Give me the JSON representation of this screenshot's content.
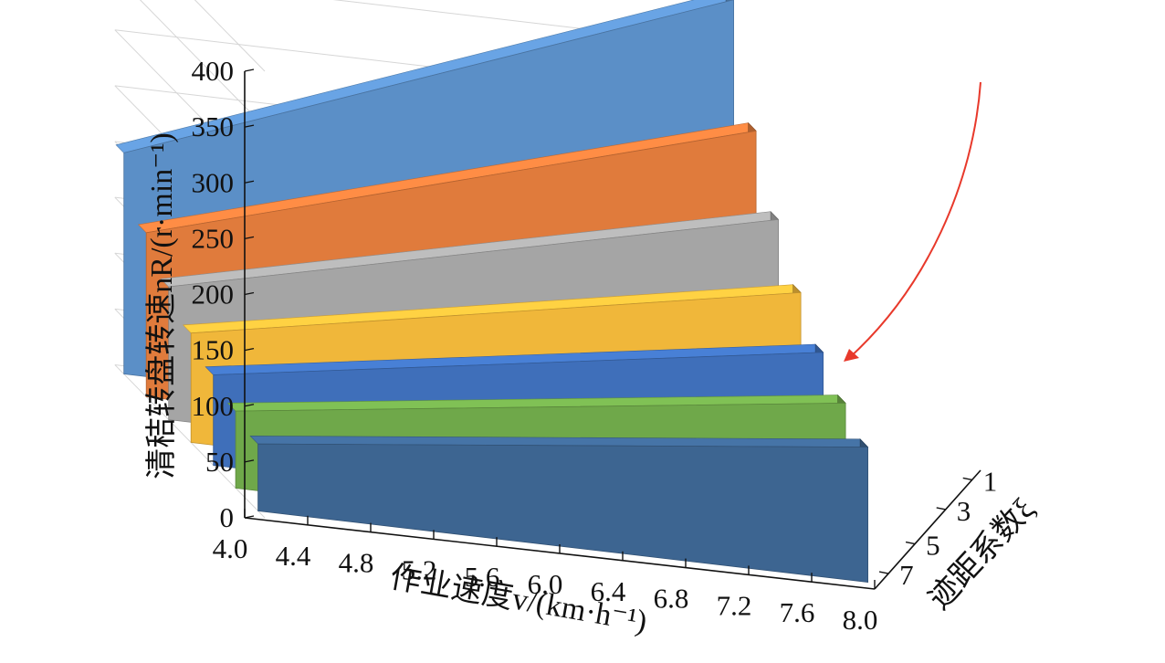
{
  "chart_data": {
    "type": "3d-area",
    "title": "",
    "xlabel": "作业速度v/(km·h⁻¹)",
    "ylabel": "清秸转盘转速nR/(r·min⁻¹)",
    "zlabel": "迹距系数ξ",
    "x_ticks": [
      "4.0",
      "4.4",
      "4.8",
      "5.2",
      "5.6",
      "6.0",
      "6.4",
      "6.8",
      "7.2",
      "7.6",
      "8.0"
    ],
    "y_ticks": [
      "0",
      "50",
      "100",
      "150",
      "200",
      "250",
      "300",
      "350",
      "400"
    ],
    "z_ticks": [
      "1",
      "3",
      "5",
      "7"
    ],
    "xlim": [
      4.0,
      8.0
    ],
    "ylim": [
      0,
      400
    ],
    "grid": true,
    "series": [
      {
        "xi": 1,
        "color": "#5b8fc7",
        "values": [
          198,
          399
        ]
      },
      {
        "xi": 2,
        "color": "#e07b3c",
        "values": [
          147,
          302
        ]
      },
      {
        "xi": 3,
        "color": "#a5a5a5",
        "values": [
          119,
          243
        ]
      },
      {
        "xi": 4,
        "color": "#f0b73a",
        "values": [
          98,
          198
        ]
      },
      {
        "xi": 5,
        "color": "#3f6fba",
        "values": [
          81,
          165
        ]
      },
      {
        "xi": 6,
        "color": "#6fa84a",
        "values": [
          69,
          140
        ]
      },
      {
        "xi": 7,
        "color": "#3d6591",
        "values": [
          60,
          121
        ]
      }
    ]
  }
}
